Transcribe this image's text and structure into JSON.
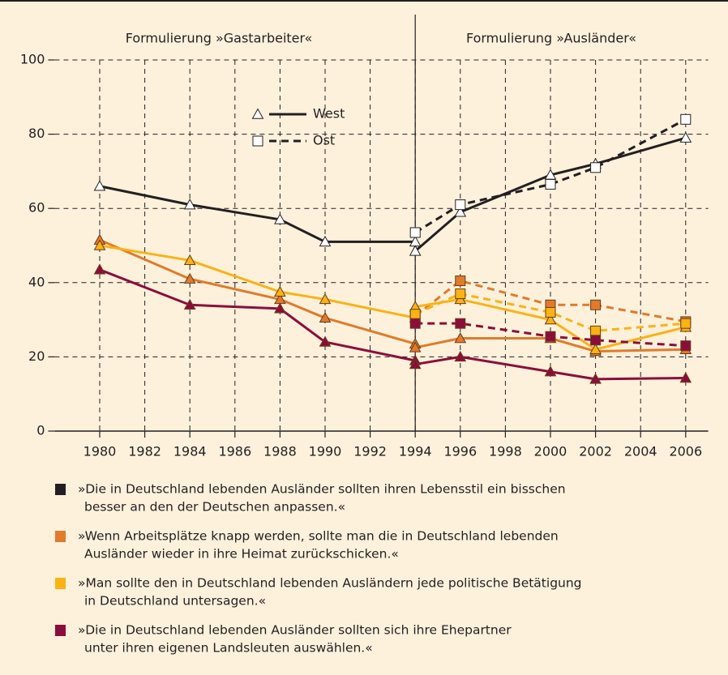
{
  "chart_data": {
    "type": "line",
    "annotations": [
      "Formulierung »Gastarbeiter«",
      "Formulierung »Ausländer«"
    ],
    "divider_x": 1994,
    "xlim": [
      1978,
      2007
    ],
    "xticks": [
      1980,
      1982,
      1984,
      1986,
      1988,
      1990,
      1992,
      1994,
      1996,
      1998,
      2000,
      2002,
      2004,
      2006
    ],
    "ylim": [
      0,
      100
    ],
    "yticks": [
      0,
      20,
      40,
      60,
      80,
      100
    ],
    "grid": true,
    "line_styles": [
      "West",
      "Ost"
    ],
    "groups": [
      {
        "text_lines": [
          "»Die in Deutschland lebenden Ausländer sollten ihren Lebensstil ein bisschen",
          "besser an den der Deutschen anpassen.«"
        ],
        "color": "#231f20",
        "west": {
          "x": [
            1980,
            1984,
            1988,
            1990,
            1994,
            1994,
            1996,
            2000,
            2002,
            2006
          ],
          "values": [
            66,
            61,
            57,
            51,
            51,
            48.5,
            59,
            69,
            72,
            79
          ]
        },
        "ost": {
          "x": [
            1994,
            1996,
            2000,
            2002,
            2006
          ],
          "values": [
            53.5,
            61,
            66.5,
            71,
            84
          ]
        }
      },
      {
        "text_lines": [
          "»Wenn Arbeitsplätze knapp werden, sollte man die in Deutschland lebenden",
          "Ausländer wieder in ihre Heimat zurückschicken.«"
        ],
        "color": "#e07b2a",
        "west": {
          "x": [
            1980,
            1984,
            1988,
            1990,
            1994,
            1994,
            1996,
            2000,
            2002,
            2006
          ],
          "values": [
            51.5,
            41,
            35.5,
            30.5,
            23.5,
            22.5,
            25,
            25,
            21.5,
            22
          ]
        },
        "ost": {
          "x": [
            1994,
            1996,
            2000,
            2002,
            2006
          ],
          "values": [
            31,
            40.5,
            34,
            34,
            29.5
          ]
        }
      },
      {
        "text_lines": [
          "»Man sollte den in Deutschland lebenden Ausländern jede politische Betätigung",
          "in Deutschland untersagen.«"
        ],
        "color": "#f9b314",
        "west": {
          "x": [
            1980,
            1984,
            1988,
            1990,
            1994,
            1994,
            1996,
            2000,
            2002,
            2006
          ],
          "values": [
            50,
            46,
            37.5,
            35.5,
            30.5,
            33.5,
            35.5,
            30,
            22,
            28
          ]
        },
        "ost": {
          "x": [
            1994,
            1996,
            2000,
            2002,
            2006
          ],
          "values": [
            31.5,
            37,
            32,
            27,
            29
          ]
        }
      },
      {
        "text_lines": [
          "»Die in Deutschland lebenden Ausländer sollten sich ihre Ehepartner",
          "unter ihren eigenen Landsleuten auswählen.«"
        ],
        "color": "#8b0e3a",
        "west": {
          "x": [
            1980,
            1984,
            1988,
            1990,
            1994,
            1994,
            1996,
            2000,
            2002,
            2006
          ],
          "values": [
            43.5,
            34,
            33,
            24,
            19,
            18,
            20,
            16,
            14,
            14.3
          ]
        },
        "ost": {
          "x": [
            1994,
            1996,
            2000,
            2002,
            2006
          ],
          "values": [
            29,
            29,
            25.5,
            24.5,
            23
          ]
        }
      }
    ]
  }
}
